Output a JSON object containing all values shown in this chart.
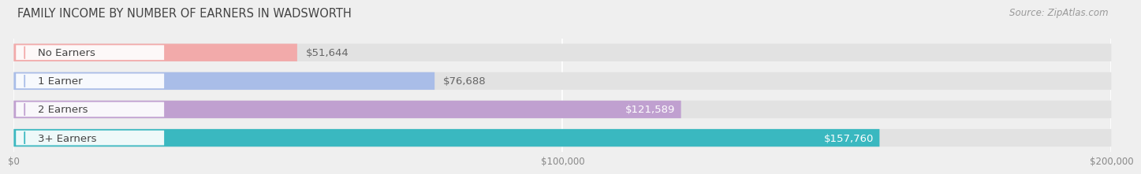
{
  "title": "FAMILY INCOME BY NUMBER OF EARNERS IN WADSWORTH",
  "source": "Source: ZipAtlas.com",
  "categories": [
    "No Earners",
    "1 Earner",
    "2 Earners",
    "3+ Earners"
  ],
  "values": [
    51644,
    76688,
    121589,
    157760
  ],
  "bar_colors": [
    "#f2aaaa",
    "#a9bde8",
    "#c0a0d0",
    "#3ab8c0"
  ],
  "value_labels": [
    "$51,644",
    "$76,688",
    "$121,589",
    "$157,760"
  ],
  "value_inside": [
    false,
    false,
    true,
    true
  ],
  "xlim": [
    0,
    200000
  ],
  "xticks": [
    0,
    100000,
    200000
  ],
  "xtick_labels": [
    "$0",
    "$100,000",
    "$200,000"
  ],
  "bar_height": 0.62,
  "background_color": "#efefef",
  "bar_bg_color": "#e2e2e2",
  "title_fontsize": 10.5,
  "source_fontsize": 8.5,
  "label_fontsize": 9.5,
  "value_fontsize": 9.5
}
